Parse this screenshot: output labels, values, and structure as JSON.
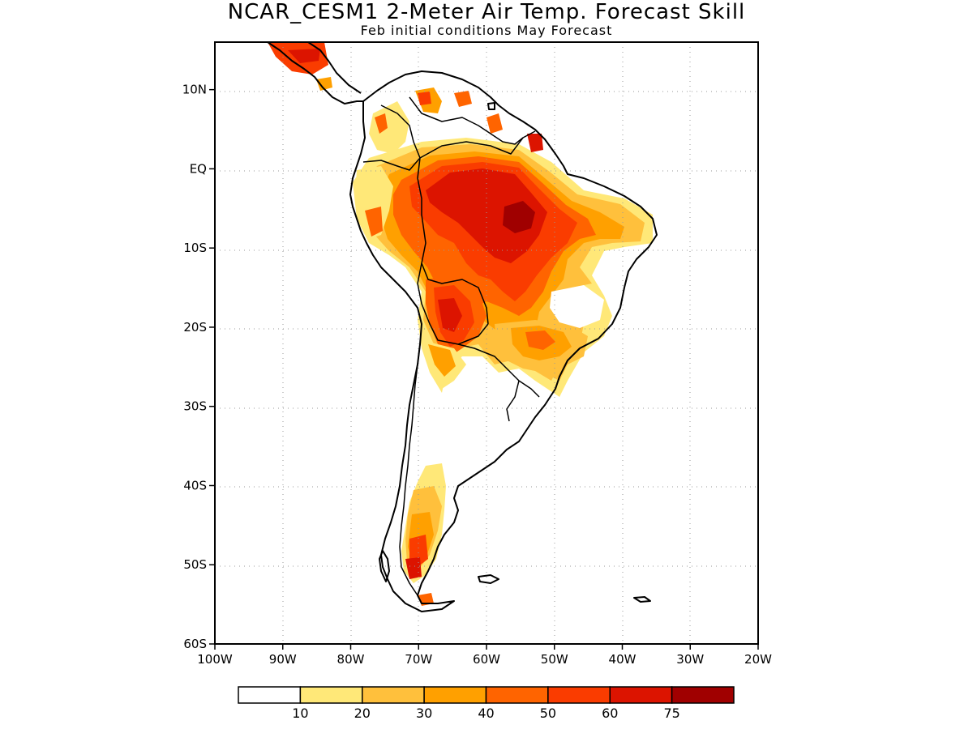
{
  "title": "NCAR_CESM1 2-Meter Air Temp. Forecast Skill",
  "subtitle": "Feb initial conditions  May Forecast",
  "map": {
    "lon_range": [
      -100,
      -20
    ],
    "lat_range": [
      -60,
      16
    ],
    "lat_ticks": [
      {
        "value": 10,
        "label": "10N"
      },
      {
        "value": 0,
        "label": "EQ"
      },
      {
        "value": -10,
        "label": "10S"
      },
      {
        "value": -20,
        "label": "20S"
      },
      {
        "value": -30,
        "label": "30S"
      },
      {
        "value": -40,
        "label": "40S"
      },
      {
        "value": -50,
        "label": "50S"
      },
      {
        "value": -60,
        "label": "60S"
      }
    ],
    "lon_ticks": [
      {
        "value": -100,
        "label": "100W"
      },
      {
        "value": -90,
        "label": "90W"
      },
      {
        "value": -80,
        "label": "80W"
      },
      {
        "value": -70,
        "label": "70W"
      },
      {
        "value": -60,
        "label": "60W"
      },
      {
        "value": -50,
        "label": "50W"
      },
      {
        "value": -40,
        "label": "40W"
      },
      {
        "value": -30,
        "label": "30W"
      },
      {
        "value": -20,
        "label": "20W"
      }
    ],
    "grid": "dotted"
  },
  "colorbar": {
    "colors": [
      "#ffffff",
      "#ffe878",
      "#ffc03c",
      "#ffa000",
      "#ff6400",
      "#fa3c00",
      "#dc1400",
      "#a00000"
    ],
    "labels": [
      "10",
      "20",
      "30",
      "40",
      "50",
      "60",
      "75"
    ]
  }
}
